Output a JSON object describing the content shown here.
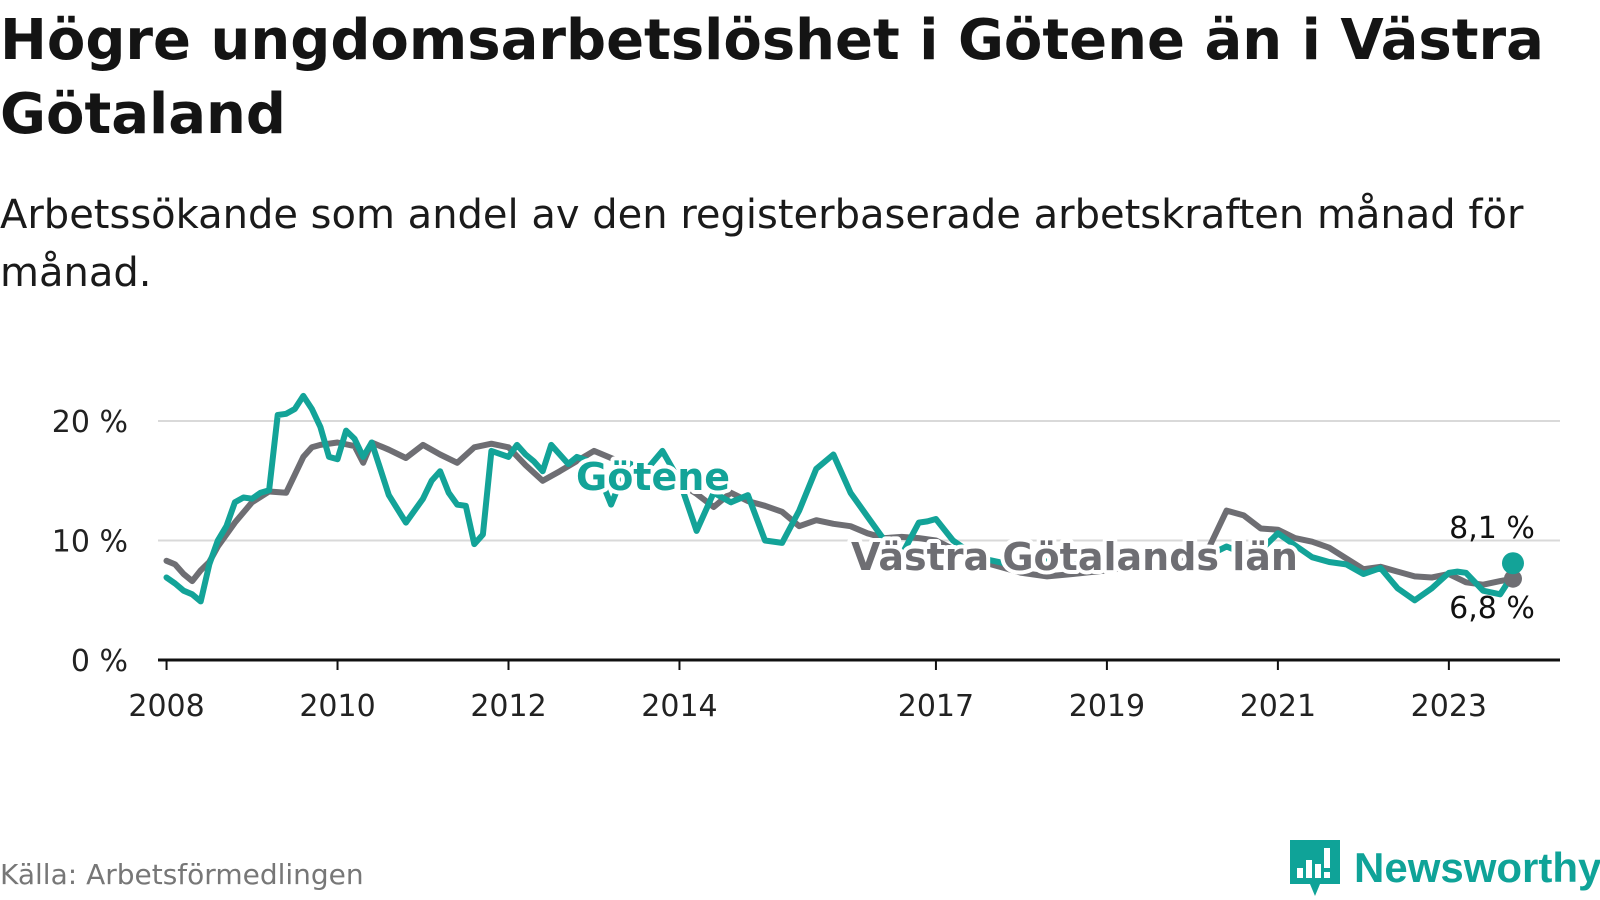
{
  "title": "Högre ungdomsarbetslöshet i Götene än i Västra Götaland",
  "subtitle": "Arbetssökande som andel av den registerbaserade arbetskraften månad för månad.",
  "source": "Källa: Arbetsförmedlingen",
  "brand": "Newsworthy",
  "colors": {
    "gotene": "#13a398",
    "vg": "#6e6e73",
    "grid": "#d9d9d9",
    "axis": "#111111",
    "brand": "#0fa398"
  },
  "chart_data": {
    "type": "line",
    "title": "Högre ungdomsarbetslöshet i Götene än i Västra Götaland",
    "xlabel": "",
    "ylabel": "",
    "xlim": [
      2007.9,
      2024.3
    ],
    "ylim": [
      0,
      20
    ],
    "yticks": [
      0,
      10,
      20
    ],
    "ytick_labels": [
      "0 %",
      "10 %",
      "20 %"
    ],
    "xticks": [
      2008,
      2010,
      2012,
      2014,
      2017,
      2019,
      2021,
      2023
    ],
    "xtick_labels": [
      "2008",
      "2010",
      "2012",
      "2014",
      "2017",
      "2019",
      "2021",
      "2023"
    ],
    "grid": true,
    "legend": "inline labels",
    "series": [
      {
        "name": "Västra Götalands län",
        "x": [
          2008.0,
          2008.1,
          2008.2,
          2008.3,
          2008.4,
          2008.5,
          2008.6,
          2008.8,
          2009.0,
          2009.2,
          2009.4,
          2009.6,
          2009.7,
          2009.8,
          2010.0,
          2010.2,
          2010.3,
          2010.4,
          2010.6,
          2010.8,
          2011.0,
          2011.2,
          2011.4,
          2011.6,
          2011.8,
          2012.0,
          2012.2,
          2012.4,
          2012.6,
          2013.0,
          2013.4,
          2013.8,
          2014.0,
          2014.2,
          2014.4,
          2014.6,
          2014.8,
          2015.0,
          2015.2,
          2015.4,
          2015.6,
          2015.8,
          2016.0,
          2016.2,
          2016.4,
          2016.6,
          2016.8,
          2017.0,
          2017.2,
          2017.4,
          2017.6,
          2017.8,
          2018.0,
          2018.3,
          2018.6,
          2019.0,
          2019.3,
          2019.6,
          2019.9,
          2020.2,
          2020.4,
          2020.6,
          2020.8,
          2021.0,
          2021.2,
          2021.4,
          2021.6,
          2021.8,
          2022.0,
          2022.2,
          2022.4,
          2022.6,
          2022.8,
          2023.0,
          2023.2,
          2023.4,
          2023.6,
          2023.75
        ],
        "values": [
          8.3,
          8.0,
          7.2,
          6.6,
          7.5,
          8.2,
          9.5,
          11.5,
          13.2,
          14.1,
          14.0,
          17.0,
          17.8,
          18.0,
          18.2,
          17.9,
          16.5,
          18.2,
          17.6,
          16.9,
          18.0,
          17.2,
          16.5,
          17.8,
          18.1,
          17.8,
          16.3,
          15.0,
          15.8,
          17.5,
          16.3,
          15.4,
          14.8,
          13.9,
          12.8,
          14.0,
          13.3,
          12.9,
          12.4,
          11.2,
          11.7,
          11.4,
          11.2,
          10.6,
          10.2,
          10.3,
          10.2,
          10.0,
          9.3,
          8.6,
          8.1,
          7.7,
          7.3,
          7.0,
          7.2,
          7.5,
          7.8,
          8.2,
          8.6,
          9.5,
          12.5,
          12.1,
          11.0,
          10.9,
          10.2,
          9.9,
          9.4,
          8.5,
          7.6,
          7.8,
          7.4,
          7.0,
          6.9,
          7.2,
          6.5,
          6.3,
          6.6,
          6.8
        ]
      },
      {
        "name": "Götene",
        "x": [
          2008.0,
          2008.1,
          2008.2,
          2008.3,
          2008.4,
          2008.5,
          2008.6,
          2008.7,
          2008.8,
          2008.9,
          2009.0,
          2009.1,
          2009.2,
          2009.3,
          2009.4,
          2009.5,
          2009.6,
          2009.7,
          2009.8,
          2009.9,
          2010.0,
          2010.1,
          2010.2,
          2010.3,
          2010.4,
          2010.5,
          2010.6,
          2010.8,
          2011.0,
          2011.1,
          2011.2,
          2011.3,
          2011.4,
          2011.5,
          2011.6,
          2011.7,
          2011.8,
          2012.0,
          2012.1,
          2012.2,
          2012.3,
          2012.4,
          2012.5,
          2012.6,
          2012.7,
          2012.8,
          2013.0,
          2013.2,
          2013.4,
          2013.6,
          2013.8,
          2014.0,
          2014.2,
          2014.4,
          2014.6,
          2014.8,
          2015.0,
          2015.2,
          2015.4,
          2015.6,
          2015.8,
          2016.0,
          2016.2,
          2016.4,
          2016.6,
          2016.8,
          2016.9,
          2017.0,
          2017.2,
          2017.4,
          2017.6,
          2017.8,
          2018.0,
          2018.2,
          2018.4,
          2018.6,
          2018.8,
          2019.0,
          2019.2,
          2019.4,
          2019.6,
          2019.8,
          2020.0,
          2020.2,
          2020.4,
          2020.6,
          2020.8,
          2021.0,
          2021.2,
          2021.4,
          2021.6,
          2021.8,
          2022.0,
          2022.2,
          2022.4,
          2022.6,
          2022.8,
          2023.0,
          2023.1,
          2023.2,
          2023.4,
          2023.6,
          2023.7,
          2023.75
        ],
        "values": [
          6.9,
          6.4,
          5.8,
          5.5,
          4.9,
          8.0,
          10.0,
          11.2,
          13.2,
          13.6,
          13.5,
          14.0,
          14.2,
          20.5,
          20.6,
          21.0,
          22.1,
          21.0,
          19.5,
          17.0,
          16.8,
          19.2,
          18.5,
          17.0,
          18.2,
          16.0,
          13.8,
          11.5,
          13.5,
          15.0,
          15.8,
          14.0,
          13.0,
          12.9,
          9.7,
          10.5,
          17.5,
          17.0,
          18.0,
          17.2,
          16.6,
          15.8,
          18.0,
          17.2,
          16.4,
          17.0,
          16.5,
          13.0,
          16.5,
          15.8,
          17.5,
          15.0,
          10.8,
          14.0,
          13.2,
          13.8,
          10.0,
          9.8,
          12.5,
          16.0,
          17.2,
          14.0,
          12.0,
          10.0,
          8.8,
          11.5,
          11.6,
          11.8,
          10.0,
          9.0,
          8.4,
          8.1,
          8.1,
          8.2,
          8.3,
          8.0,
          8.1,
          8.2,
          8.5,
          8.4,
          8.3,
          8.9,
          9.0,
          8.8,
          9.5,
          8.9,
          9.2,
          10.6,
          9.6,
          8.6,
          8.2,
          8.0,
          7.2,
          7.7,
          6.0,
          5.0,
          6.0,
          7.3,
          7.4,
          7.3,
          5.8,
          5.5,
          6.6,
          8.1
        ]
      }
    ],
    "annotations": [
      {
        "text": "8,1 %",
        "series": "Götene",
        "x": 2023.75,
        "y": 8.1
      },
      {
        "text": "6,8 %",
        "series": "Västra Götalands län",
        "x": 2023.75,
        "y": 6.8
      }
    ],
    "series_labels": [
      {
        "text": "Götene",
        "series": "Götene"
      },
      {
        "text": "Västra Götalands län",
        "series": "Västra Götalands län"
      }
    ]
  }
}
